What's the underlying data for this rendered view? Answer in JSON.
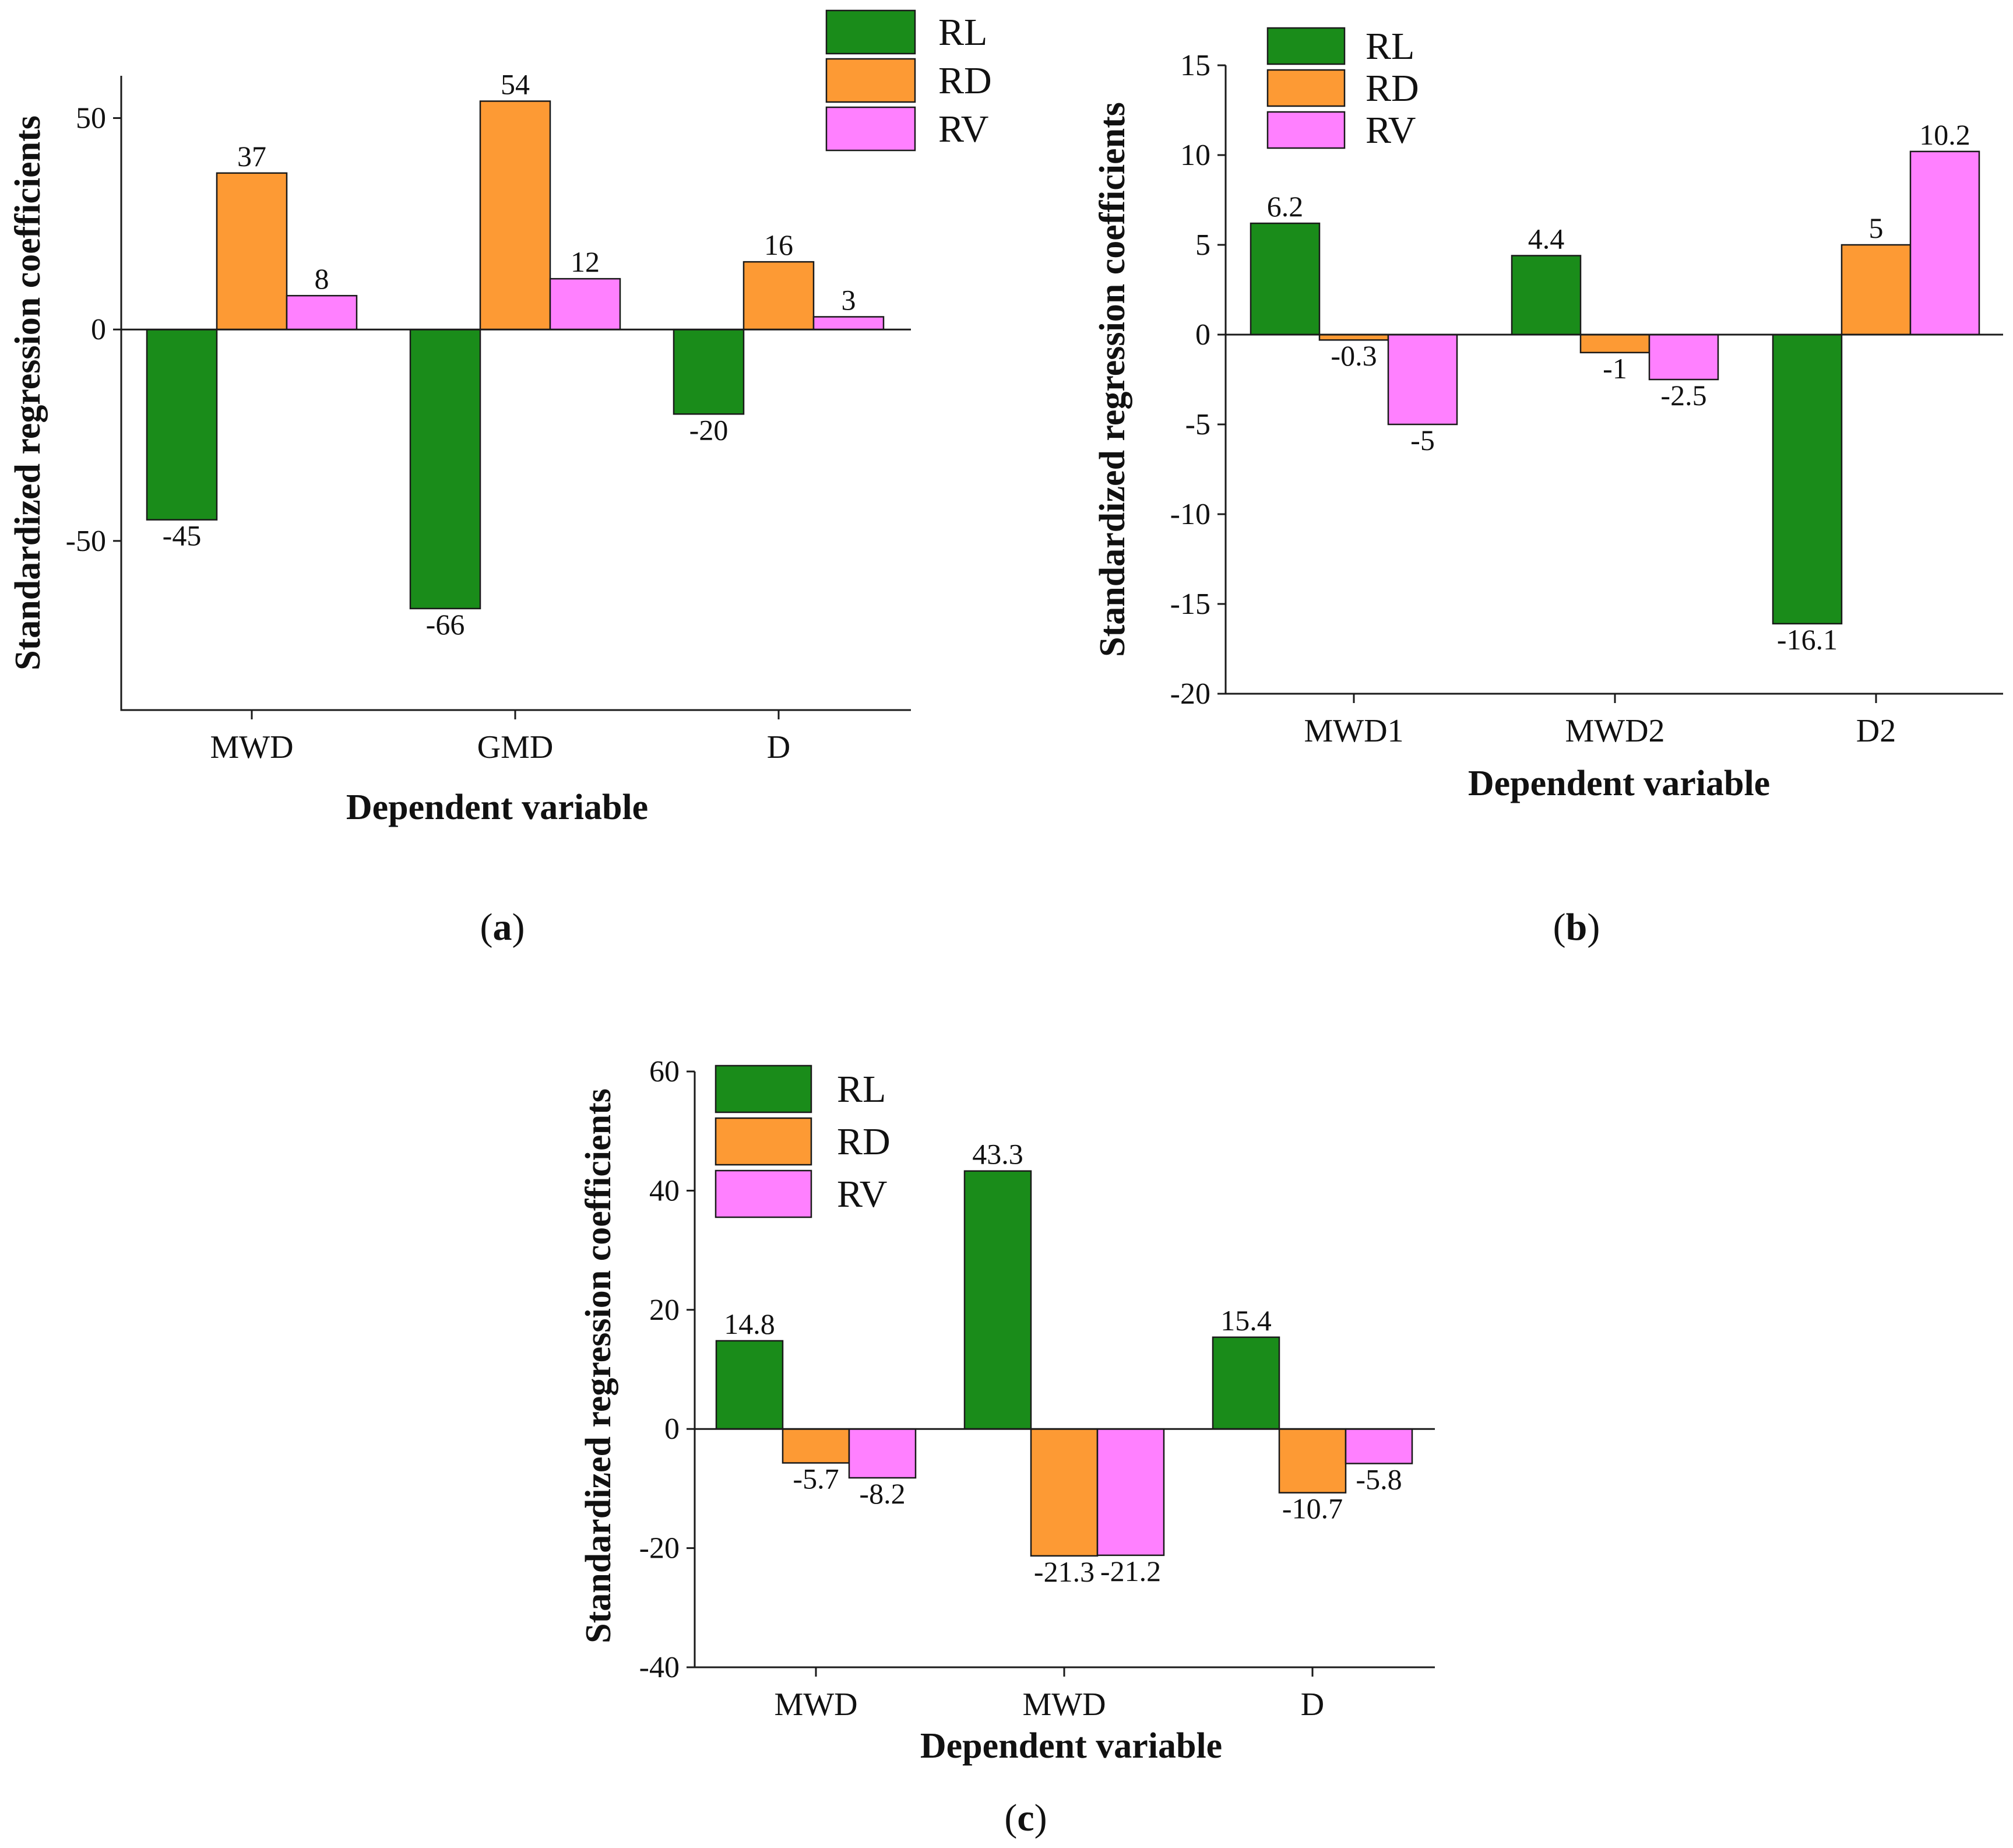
{
  "colors": {
    "RL": "#1a8c1a",
    "RD": "#fd9a34",
    "RV": "#ff80ff"
  },
  "chart_data": [
    {
      "panel": "(a)",
      "panel_parts": [
        "(",
        "a",
        ")"
      ],
      "type": "bar",
      "ylabel": "Standardized regression coefficients",
      "xlabel": "Dependent variable",
      "ylim": [
        -90,
        60
      ],
      "yticks": [
        -50,
        0,
        50
      ],
      "categories": [
        "MWD",
        "GMD",
        "D"
      ],
      "legend": [
        "RL",
        "RD",
        "RV"
      ],
      "series": [
        {
          "name": "RL",
          "values": [
            -45,
            -66,
            -20
          ],
          "labels": [
            "-45",
            "-66",
            "-20"
          ]
        },
        {
          "name": "RD",
          "values": [
            37,
            54,
            16
          ],
          "labels": [
            "37",
            "54",
            "16"
          ]
        },
        {
          "name": "RV",
          "values": [
            8,
            12,
            3
          ],
          "labels": [
            "8",
            "12",
            "3"
          ]
        }
      ]
    },
    {
      "panel": "(b)",
      "panel_parts": [
        "(",
        "b",
        ")"
      ],
      "type": "bar",
      "ylabel": "Standardized regression coefficients",
      "xlabel": "Dependent variable",
      "ylim": [
        -20,
        15
      ],
      "yticks": [
        -20,
        -15,
        -10,
        -5,
        0,
        5,
        10,
        15
      ],
      "categories": [
        "MWD1",
        "MWD2",
        "D2"
      ],
      "legend": [
        "RL",
        "RD",
        "RV"
      ],
      "series": [
        {
          "name": "RL",
          "values": [
            6.2,
            4.4,
            -16.1
          ],
          "labels": [
            "6.2",
            "4.4",
            "-16.1"
          ]
        },
        {
          "name": "RD",
          "values": [
            -0.3,
            -1,
            5
          ],
          "labels": [
            "-0.3",
            "-1",
            "5"
          ]
        },
        {
          "name": "RV",
          "values": [
            -5,
            -2.5,
            10.2
          ],
          "labels": [
            "-5",
            "-2.5",
            "10.2"
          ]
        }
      ]
    },
    {
      "panel": "(c)",
      "panel_parts": [
        "(",
        "c",
        ")"
      ],
      "type": "bar",
      "ylabel": "Standardized regression coefficients",
      "xlabel": "Dependent variable",
      "ylim": [
        -40,
        60
      ],
      "yticks": [
        -40,
        -20,
        0,
        20,
        40,
        60
      ],
      "categories": [
        "MWD",
        "MWD",
        "D"
      ],
      "legend": [
        "RL",
        "RD",
        "RV"
      ],
      "series": [
        {
          "name": "RL",
          "values": [
            14.8,
            43.3,
            15.4
          ],
          "labels": [
            "14.8",
            "43.3",
            "15.4"
          ]
        },
        {
          "name": "RD",
          "values": [
            -5.7,
            -21.3,
            -10.7
          ],
          "labels": [
            "-5.7",
            "-21.3",
            "-10.7"
          ]
        },
        {
          "name": "RV",
          "values": [
            -8.2,
            -21.2,
            -5.8
          ],
          "labels": [
            "-8.2",
            "-21.2",
            "-5.8"
          ]
        }
      ]
    }
  ]
}
